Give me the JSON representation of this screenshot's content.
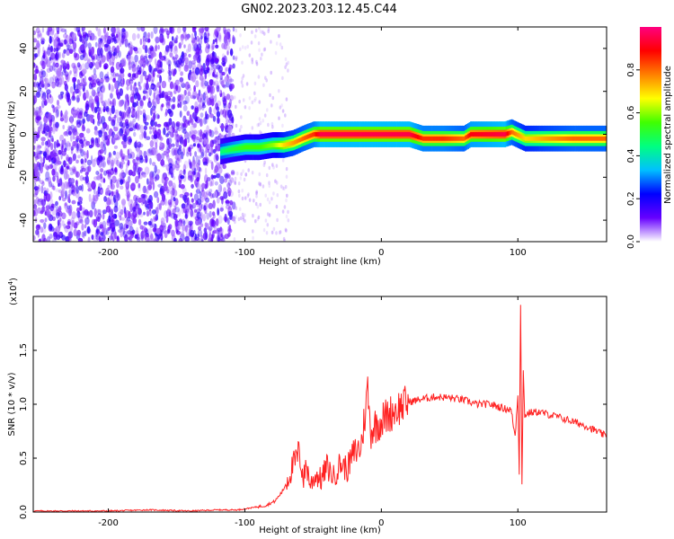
{
  "figure_title": "GN02.2023.203.12.45.C44",
  "chart_data": [
    {
      "type": "heatmap",
      "name": "spectrogram",
      "xlabel": "Height of straight line (km)",
      "ylabel": "Frequency (Hz)",
      "xlim": [
        -255,
        165
      ],
      "ylim": [
        -50,
        50
      ],
      "xticks": [
        -200,
        -100,
        0,
        100
      ],
      "yticks": [
        -40,
        -20,
        0,
        20,
        40
      ],
      "grid": false,
      "colorbar": {
        "label": "Normalized spectral amplitude",
        "range": [
          0,
          1
        ],
        "ticks": [
          0.0,
          0.2,
          0.4,
          0.6,
          0.8
        ],
        "colormap": [
          "#ffffff",
          "#6600ff",
          "#0000ff",
          "#00c0ff",
          "#00ff80",
          "#40ff00",
          "#ffff00",
          "#ff8000",
          "#ff0000",
          "#ff0080"
        ]
      },
      "noise_region_x": [
        -255,
        -108
      ],
      "signal_track": [
        {
          "x": -118,
          "y": -8,
          "amp": 0.45
        },
        {
          "x": -110,
          "y": -7,
          "amp": 0.5
        },
        {
          "x": -100,
          "y": -6,
          "amp": 0.55
        },
        {
          "x": -90,
          "y": -6,
          "amp": 0.55
        },
        {
          "x": -80,
          "y": -5,
          "amp": 0.6
        },
        {
          "x": -72,
          "y": -5,
          "amp": 0.7
        },
        {
          "x": -65,
          "y": -4,
          "amp": 0.75
        },
        {
          "x": -58,
          "y": -2,
          "amp": 0.8
        },
        {
          "x": -50,
          "y": 0,
          "amp": 0.85
        },
        {
          "x": -45,
          "y": 0,
          "amp": 0.95
        },
        {
          "x": -30,
          "y": 0,
          "amp": 0.95
        },
        {
          "x": -10,
          "y": 0,
          "amp": 0.95
        },
        {
          "x": 10,
          "y": 0,
          "amp": 0.95
        },
        {
          "x": 20,
          "y": 0,
          "amp": 0.95
        },
        {
          "x": 30,
          "y": -2,
          "amp": 0.85
        },
        {
          "x": 45,
          "y": -2,
          "amp": 0.85
        },
        {
          "x": 60,
          "y": -2,
          "amp": 0.8
        },
        {
          "x": 65,
          "y": 0,
          "amp": 0.9
        },
        {
          "x": 90,
          "y": 0,
          "amp": 0.95
        },
        {
          "x": 95,
          "y": 1,
          "amp": 0.8
        },
        {
          "x": 105,
          "y": -2,
          "amp": 0.7
        },
        {
          "x": 120,
          "y": -2,
          "amp": 0.75
        },
        {
          "x": 140,
          "y": -2,
          "amp": 0.8
        },
        {
          "x": 165,
          "y": -2,
          "amp": 0.8
        }
      ]
    },
    {
      "type": "line",
      "name": "snr",
      "xlabel": "Height of straight line (km)",
      "ylabel": "SNR (10 * v/v)",
      "y_scale_label": "(x10^4)",
      "xlim": [
        -255,
        165
      ],
      "ylim": [
        0,
        2.0
      ],
      "xticks": [
        -200,
        -100,
        0,
        100
      ],
      "yticks": [
        0.0,
        0.5,
        1.0,
        1.5
      ],
      "grid": false,
      "line_color": "#ff2020",
      "series": [
        {
          "x": [
            -255,
            -230,
            -200,
            -170,
            -140,
            -120,
            -105,
            -95,
            -85,
            -78,
            -72,
            -65,
            -60,
            -57,
            -55,
            -52,
            -48,
            -44,
            -40,
            -35,
            -30,
            -25,
            -20,
            -15,
            -12,
            -10,
            -8,
            -5,
            0,
            10,
            20,
            30,
            40,
            50,
            60,
            70,
            80,
            90,
            95,
            98,
            100,
            101,
            102,
            103,
            104,
            105,
            108,
            115,
            130,
            150,
            165
          ],
          "values": [
            0.01,
            0.01,
            0.01,
            0.02,
            0.01,
            0.02,
            0.02,
            0.04,
            0.06,
            0.1,
            0.2,
            0.42,
            0.55,
            0.3,
            0.45,
            0.25,
            0.35,
            0.3,
            0.42,
            0.33,
            0.45,
            0.4,
            0.55,
            0.6,
            0.9,
            1.15,
            0.75,
            0.8,
            0.85,
            0.95,
            1.02,
            1.05,
            1.07,
            1.06,
            1.04,
            1.0,
            1.0,
            0.96,
            0.95,
            0.7,
            1.1,
            0.35,
            1.95,
            0.25,
            1.3,
            0.9,
            0.92,
            0.93,
            0.88,
            0.8,
            0.7
          ]
        }
      ]
    }
  ]
}
